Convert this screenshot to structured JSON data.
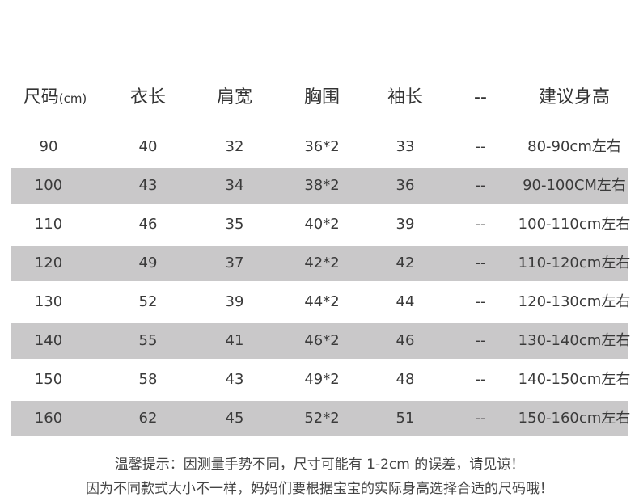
{
  "header": {
    "size": "尺码",
    "size_unit": "(cm)",
    "columns": [
      "衣长",
      "肩宽",
      "胸围",
      "袖长",
      "--",
      "建议身高"
    ]
  },
  "rows": [
    [
      "90",
      "40",
      "32",
      "36*2",
      "33",
      "--",
      "80-90cm左右"
    ],
    [
      "100",
      "43",
      "34",
      "38*2",
      "36",
      "--",
      "90-100CM左右"
    ],
    [
      "110",
      "46",
      "35",
      "40*2",
      "39",
      "--",
      "100-110cm左右"
    ],
    [
      "120",
      "49",
      "37",
      "42*2",
      "42",
      "--",
      "110-120cm左右"
    ],
    [
      "130",
      "52",
      "39",
      "44*2",
      "44",
      "--",
      "120-130cm左右"
    ],
    [
      "140",
      "55",
      "41",
      "46*2",
      "46",
      "--",
      "130-140cm左右"
    ],
    [
      "150",
      "58",
      "43",
      "49*2",
      "48",
      "--",
      "140-150cm左右"
    ],
    [
      "160",
      "62",
      "45",
      "52*2",
      "51",
      "--",
      "150-160cm左右"
    ]
  ],
  "notes": [
    "温馨提示：因测量手势不同，尺寸可能有 1-2cm 的误差，请见谅！",
    "因为不同款式大小不一样，妈妈们要根据宝宝的实际身高选择合适的尺码哦！"
  ],
  "colors": {
    "band": "#c9c8c9"
  }
}
